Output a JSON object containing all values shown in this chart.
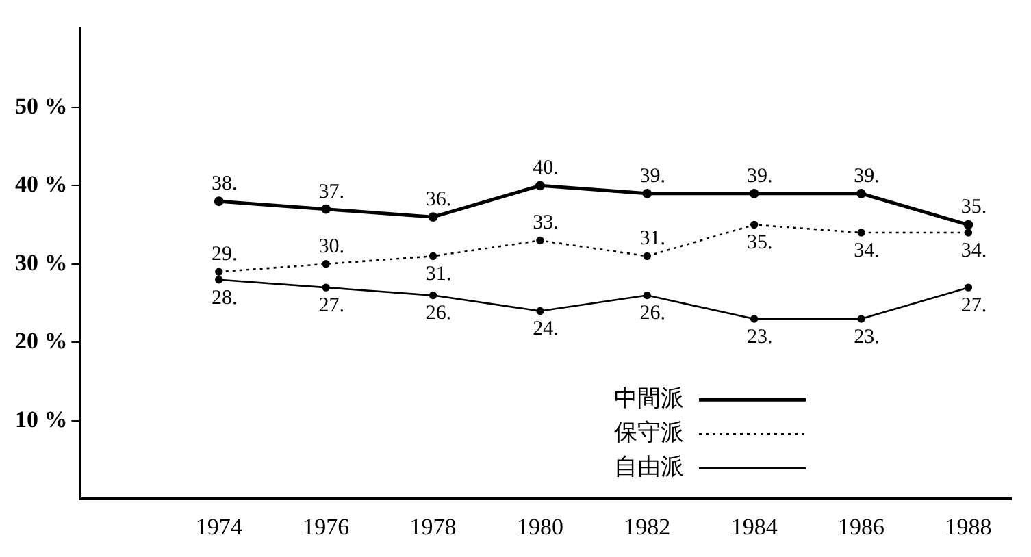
{
  "chart_data": {
    "type": "line",
    "x": [
      1974,
      1976,
      1978,
      1980,
      1982,
      1984,
      1986,
      1988
    ],
    "xlim": [
      1971.4,
      1988.8
    ],
    "xticks": [
      1974,
      1976,
      1978,
      1980,
      1982,
      1984,
      1986,
      1988
    ],
    "ylim": [
      0,
      60
    ],
    "yticks": [
      {
        "value": 10,
        "label": "10 %"
      },
      {
        "value": 20,
        "label": "20 %"
      },
      {
        "value": 30,
        "label": "30 %"
      },
      {
        "value": 40,
        "label": "40 %"
      },
      {
        "value": 50,
        "label": "50 %"
      }
    ],
    "grid": false,
    "legend": "bottom right",
    "marker": "circle",
    "series": [
      {
        "name": "中間派",
        "color": "#000000",
        "line_style": "solid",
        "values": [
          38,
          37,
          36,
          40,
          39,
          39,
          39,
          35
        ],
        "value_labels": [
          "38.",
          "37.",
          "36.",
          "40.",
          "39.",
          "39.",
          "39.",
          "35."
        ]
      },
      {
        "name": "保守派",
        "color": "#000000",
        "line_style": "dotted",
        "values": [
          29,
          30,
          31,
          33,
          31,
          35,
          34,
          34
        ],
        "value_labels": [
          "29.",
          "30.",
          "31.",
          "33.",
          "31.",
          "35.",
          "34.",
          "34."
        ]
      },
      {
        "name": "自由派",
        "color": "#000000",
        "line_style": "solid",
        "values": [
          28,
          27,
          26,
          24,
          26,
          23,
          23,
          27
        ],
        "value_labels": [
          "28.",
          "27.",
          "26.",
          "24.",
          "26.",
          "23.",
          "23.",
          "27."
        ]
      }
    ]
  }
}
